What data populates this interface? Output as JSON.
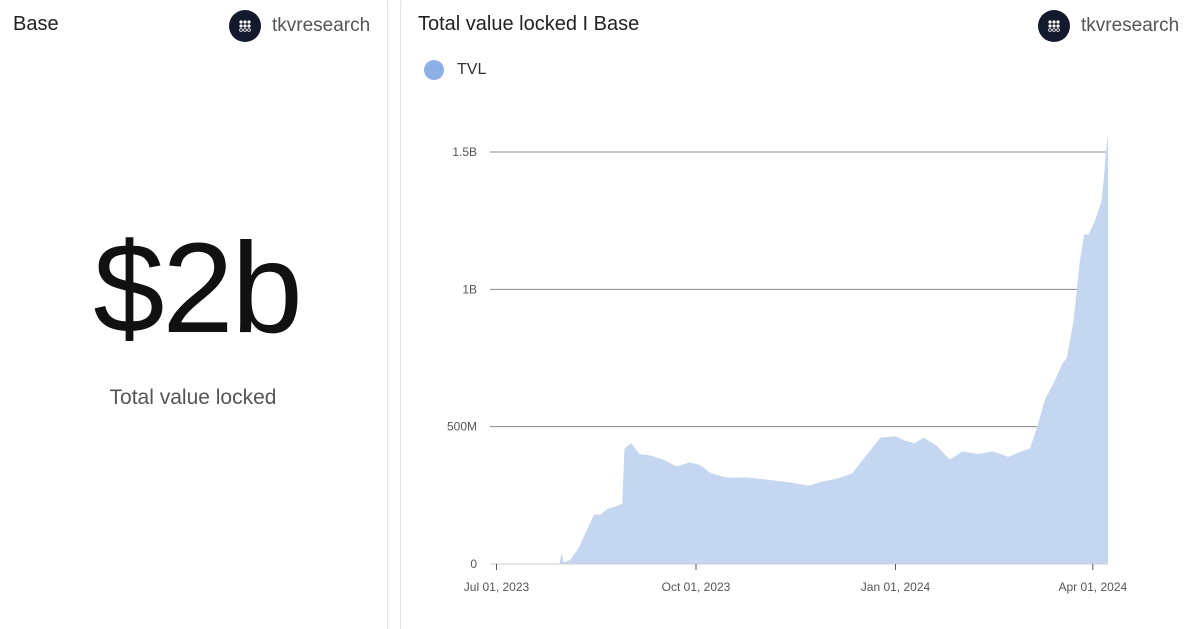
{
  "left_card": {
    "title": "Base",
    "author": "tkvresearch",
    "value": "$2b",
    "caption": "Total value locked"
  },
  "right_card": {
    "title": "Total value locked I Base",
    "author": "tkvresearch"
  },
  "colors": {
    "area_fill": "#c5d6f0",
    "legend_swatch": "#8fb0e6",
    "grid": "#8a8a8a",
    "avatar_bg": "#141a2e"
  },
  "chart_data": {
    "type": "area",
    "title": "Total value locked I Base",
    "legend": [
      {
        "name": "TVL",
        "position": "top-left"
      }
    ],
    "grid": true,
    "y_ticks": [
      {
        "value": 0,
        "label": "0"
      },
      {
        "value": 500000000,
        "label": "500M"
      },
      {
        "value": 1000000000,
        "label": "1B"
      },
      {
        "value": 1500000000,
        "label": "1.5B"
      }
    ],
    "x_ticks": [
      {
        "date": "2023-07-01",
        "label": "Jul 01, 2023"
      },
      {
        "date": "2023-10-01",
        "label": "Oct 01, 2023"
      },
      {
        "date": "2024-01-01",
        "label": "Jan 01, 2024"
      },
      {
        "date": "2024-04-01",
        "label": "Apr 01, 2024"
      }
    ],
    "xlim": [
      "2023-06-28",
      "2024-04-08"
    ],
    "ylim": [
      0,
      1580000000
    ],
    "series": [
      {
        "name": "TVL",
        "points": [
          [
            "2023-06-28",
            0
          ],
          [
            "2023-07-30",
            0
          ],
          [
            "2023-07-31",
            40000000
          ],
          [
            "2023-08-01",
            5000000
          ],
          [
            "2023-08-04",
            15000000
          ],
          [
            "2023-08-08",
            60000000
          ],
          [
            "2023-08-12",
            130000000
          ],
          [
            "2023-08-15",
            180000000
          ],
          [
            "2023-08-18",
            180000000
          ],
          [
            "2023-08-21",
            200000000
          ],
          [
            "2023-08-25",
            210000000
          ],
          [
            "2023-08-28",
            220000000
          ],
          [
            "2023-08-29",
            420000000
          ],
          [
            "2023-09-01",
            440000000
          ],
          [
            "2023-09-05",
            400000000
          ],
          [
            "2023-09-10",
            395000000
          ],
          [
            "2023-09-16",
            380000000
          ],
          [
            "2023-09-22",
            355000000
          ],
          [
            "2023-09-28",
            370000000
          ],
          [
            "2023-10-03",
            360000000
          ],
          [
            "2023-10-08",
            330000000
          ],
          [
            "2023-10-15",
            315000000
          ],
          [
            "2023-10-25",
            315000000
          ],
          [
            "2023-11-05",
            305000000
          ],
          [
            "2023-11-15",
            295000000
          ],
          [
            "2023-11-22",
            285000000
          ],
          [
            "2023-11-28",
            300000000
          ],
          [
            "2023-12-05",
            310000000
          ],
          [
            "2023-12-12",
            330000000
          ],
          [
            "2023-12-15",
            360000000
          ],
          [
            "2023-12-20",
            410000000
          ],
          [
            "2023-12-25",
            460000000
          ],
          [
            "2024-01-01",
            465000000
          ],
          [
            "2024-01-05",
            450000000
          ],
          [
            "2024-01-10",
            440000000
          ],
          [
            "2024-01-14",
            460000000
          ],
          [
            "2024-01-20",
            430000000
          ],
          [
            "2024-01-26",
            380000000
          ],
          [
            "2024-02-01",
            410000000
          ],
          [
            "2024-02-08",
            400000000
          ],
          [
            "2024-02-15",
            410000000
          ],
          [
            "2024-02-22",
            390000000
          ],
          [
            "2024-02-28",
            410000000
          ],
          [
            "2024-03-03",
            420000000
          ],
          [
            "2024-03-06",
            490000000
          ],
          [
            "2024-03-10",
            600000000
          ],
          [
            "2024-03-14",
            660000000
          ],
          [
            "2024-03-18",
            730000000
          ],
          [
            "2024-03-20",
            750000000
          ],
          [
            "2024-03-23",
            880000000
          ],
          [
            "2024-03-26",
            1100000000
          ],
          [
            "2024-03-28",
            1200000000
          ],
          [
            "2024-03-30",
            1200000000
          ],
          [
            "2024-04-02",
            1250000000
          ],
          [
            "2024-04-05",
            1320000000
          ],
          [
            "2024-04-06",
            1400000000
          ],
          [
            "2024-04-07",
            1500000000
          ],
          [
            "2024-04-08",
            1560000000
          ]
        ]
      }
    ]
  }
}
